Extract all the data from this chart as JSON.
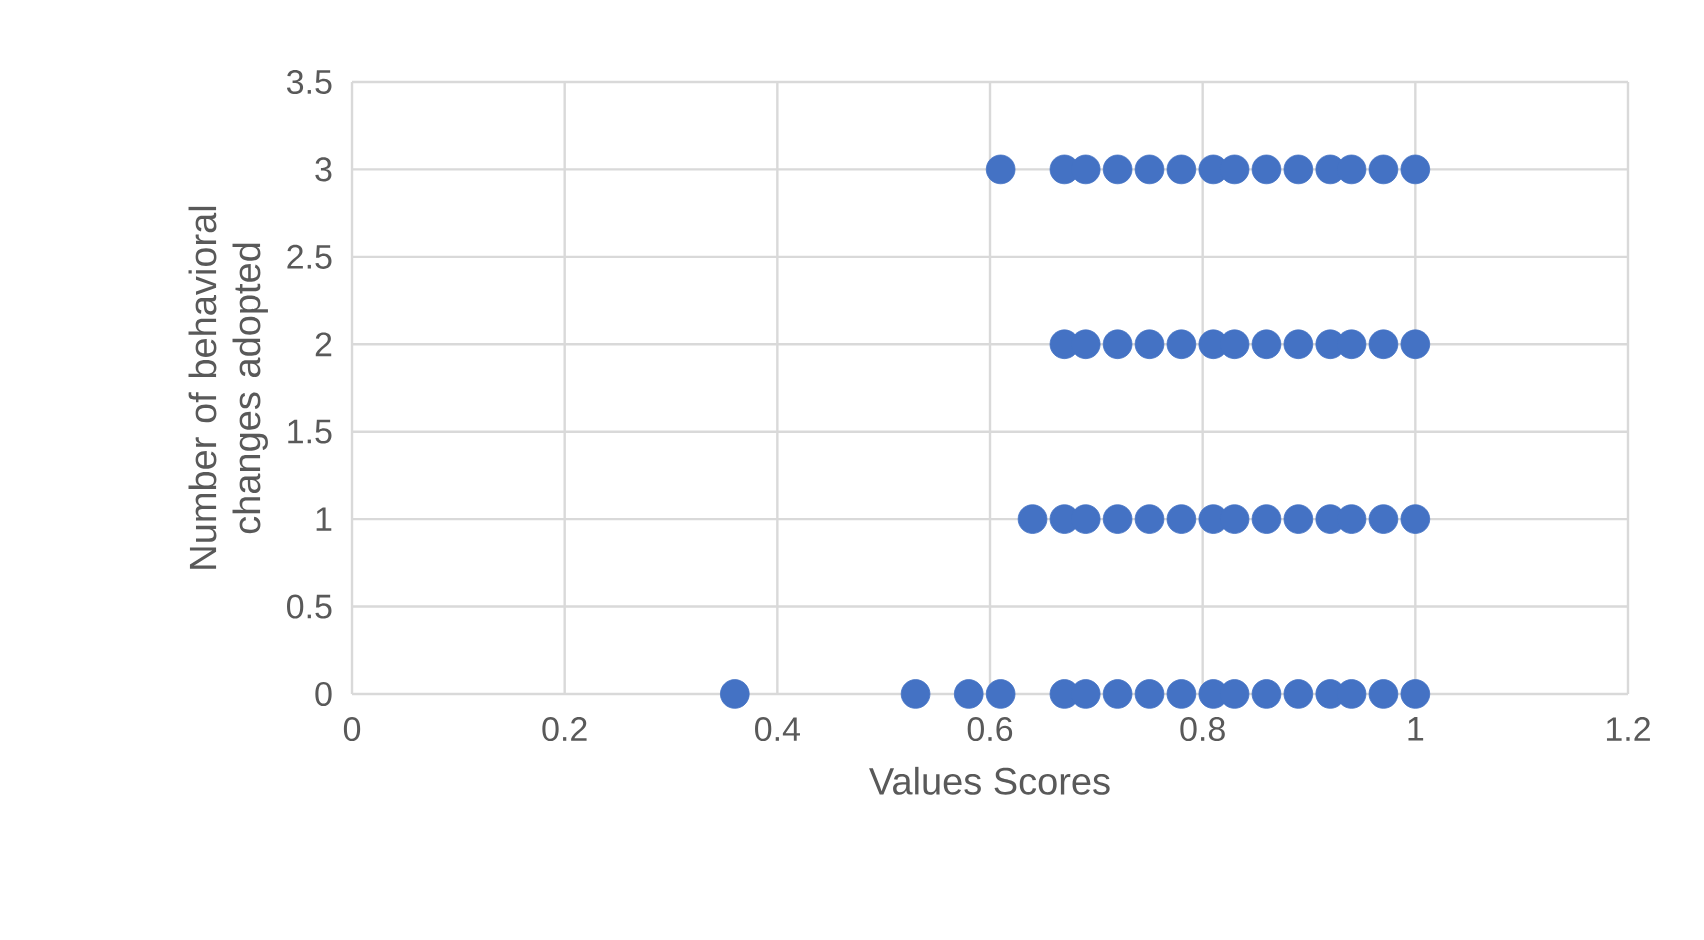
{
  "chart_data": {
    "type": "scatter",
    "xlabel": "Values Scores",
    "ylabel": "Number of behavioral changes adopted",
    "series": [
      {
        "color": "#4472c4",
        "x": [
          0.36,
          0.53,
          0.58,
          0.61,
          0.67,
          0.69,
          0.72,
          0.75,
          0.78,
          0.81,
          0.83,
          0.86,
          0.89,
          0.92,
          0.94,
          0.97,
          1,
          0.64,
          0.67,
          0.69,
          0.72,
          0.75,
          0.78,
          0.81,
          0.83,
          0.86,
          0.89,
          0.92,
          0.94,
          0.97,
          1,
          0.67,
          0.69,
          0.72,
          0.75,
          0.78,
          0.81,
          0.83,
          0.86,
          0.89,
          0.92,
          0.94,
          0.97,
          1,
          0.61,
          0.67,
          0.69,
          0.72,
          0.75,
          0.78,
          0.81,
          0.83,
          0.86,
          0.89,
          0.92,
          0.94,
          0.97,
          1
        ],
        "values": [
          0,
          0,
          0,
          0,
          0,
          0,
          0,
          0,
          0,
          0,
          0,
          0,
          0,
          0,
          0,
          0,
          0,
          1,
          1,
          1,
          1,
          1,
          1,
          1,
          1,
          1,
          1,
          1,
          1,
          1,
          1,
          2,
          2,
          2,
          2,
          2,
          2,
          2,
          2,
          2,
          2,
          2,
          2,
          2,
          3,
          3,
          3,
          3,
          3,
          3,
          3,
          3,
          3,
          3,
          3,
          3,
          3,
          3
        ]
      }
    ],
    "xlim": [
      0,
      1.2
    ],
    "xticks": [
      0,
      0.2,
      0.4,
      0.6,
      0.8,
      1,
      1.2
    ],
    "ylim": [
      0,
      3.5
    ],
    "yticks": [
      0,
      0.5,
      1,
      1.5,
      2,
      2.5,
      3,
      3.5
    ],
    "grid": true,
    "marker": "circle"
  }
}
